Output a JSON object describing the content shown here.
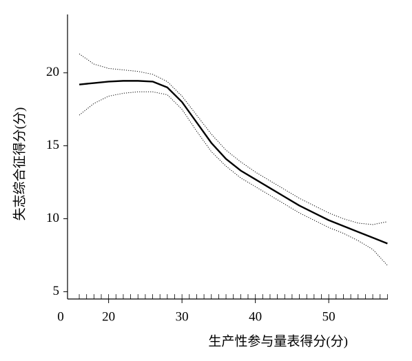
{
  "chart_data": {
    "type": "line",
    "x_label": "生产性参与量表得分(分)",
    "y_label": "失志综合征得分(分)",
    "origin_label": "0",
    "x": [
      16,
      18,
      20,
      22,
      24,
      26,
      28,
      30,
      32,
      34,
      36,
      38,
      40,
      42,
      44,
      46,
      48,
      50,
      52,
      54,
      56,
      58
    ],
    "series": [
      {
        "color": "#000000",
        "style": "solid",
        "values": [
          19.2,
          19.3,
          19.4,
          19.45,
          19.45,
          19.4,
          19.0,
          18.0,
          16.6,
          15.2,
          14.1,
          13.3,
          12.7,
          12.1,
          11.5,
          10.9,
          10.4,
          9.9,
          9.5,
          9.1,
          8.7,
          8.3
        ]
      },
      {
        "color": "#000000",
        "style": "dotted",
        "values": [
          21.3,
          20.6,
          20.3,
          20.2,
          20.1,
          19.9,
          19.4,
          18.4,
          17.1,
          15.8,
          14.7,
          13.9,
          13.2,
          12.6,
          12.0,
          11.4,
          10.9,
          10.4,
          10.0,
          9.7,
          9.6,
          9.8
        ]
      },
      {
        "color": "#000000",
        "style": "dotted",
        "values": [
          17.1,
          17.9,
          18.4,
          18.6,
          18.7,
          18.7,
          18.5,
          17.5,
          16.0,
          14.6,
          13.6,
          12.8,
          12.2,
          11.6,
          11.0,
          10.4,
          9.9,
          9.4,
          9.0,
          8.5,
          7.9,
          6.8
        ]
      }
    ],
    "rug": [
      16,
      17,
      18,
      19,
      20,
      21,
      22,
      23,
      24,
      25,
      26,
      27,
      28,
      29,
      30,
      31,
      32,
      33,
      34,
      35,
      36,
      37,
      38,
      39,
      40,
      41,
      42,
      43,
      44,
      45,
      46,
      47,
      48,
      49,
      50,
      51,
      52,
      53,
      54,
      55,
      56,
      57,
      58
    ],
    "xlim": [
      14.4,
      59
    ],
    "xticks": [
      20,
      30,
      40,
      50
    ],
    "ylim": [
      4.5,
      24
    ],
    "yticks": [
      5,
      10,
      15,
      20
    ],
    "grid": false
  }
}
